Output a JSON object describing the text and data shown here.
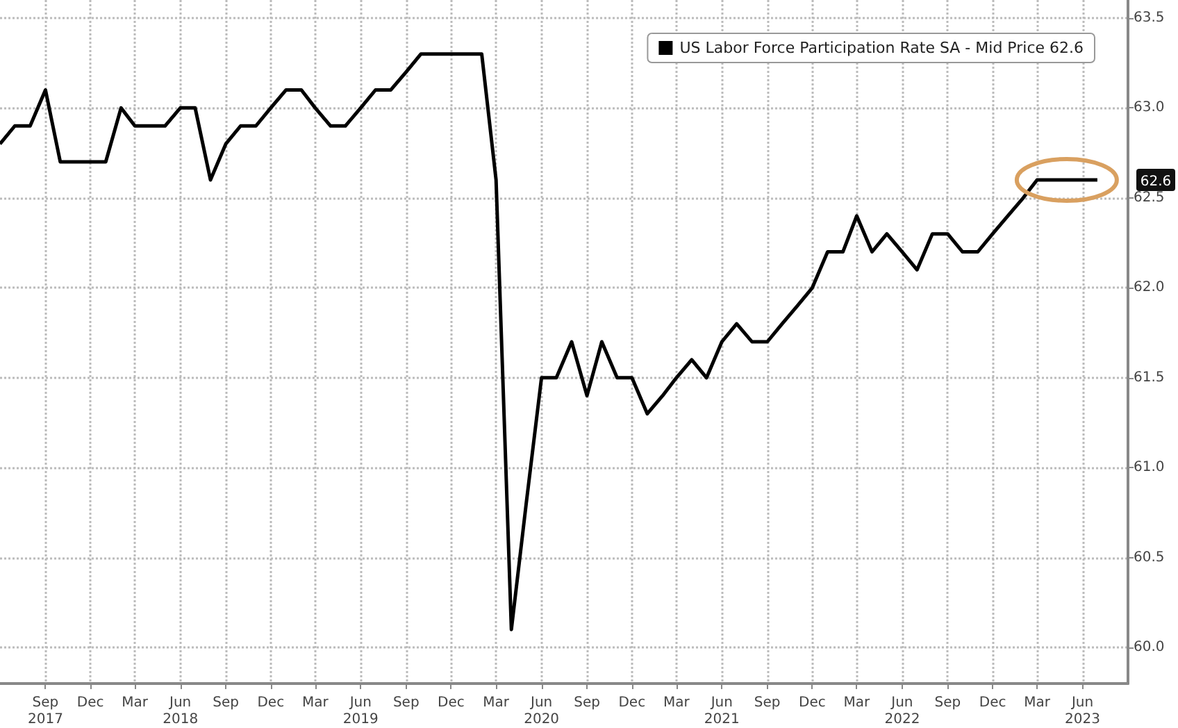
{
  "chart_data": {
    "type": "line",
    "x": [
      "2017-06",
      "2017-07",
      "2017-08",
      "2017-09",
      "2017-10",
      "2017-11",
      "2017-12",
      "2018-01",
      "2018-02",
      "2018-03",
      "2018-04",
      "2018-05",
      "2018-06",
      "2018-07",
      "2018-08",
      "2018-09",
      "2018-10",
      "2018-11",
      "2018-12",
      "2019-01",
      "2019-02",
      "2019-03",
      "2019-04",
      "2019-05",
      "2019-06",
      "2019-07",
      "2019-08",
      "2019-09",
      "2019-10",
      "2019-11",
      "2019-12",
      "2020-01",
      "2020-02",
      "2020-03",
      "2020-04",
      "2020-05",
      "2020-06",
      "2020-07",
      "2020-08",
      "2020-09",
      "2020-10",
      "2020-11",
      "2020-12",
      "2021-01",
      "2021-02",
      "2021-03",
      "2021-04",
      "2021-05",
      "2021-06",
      "2021-07",
      "2021-08",
      "2021-09",
      "2021-10",
      "2021-11",
      "2021-12",
      "2022-01",
      "2022-02",
      "2022-03",
      "2022-04",
      "2022-05",
      "2022-06",
      "2022-07",
      "2022-08",
      "2022-09",
      "2022-10",
      "2022-11",
      "2022-12",
      "2023-01",
      "2023-02",
      "2023-03",
      "2023-04",
      "2023-05",
      "2023-06",
      "2023-07"
    ],
    "series": [
      {
        "name": "US Labor Force Participation Rate SA - Mid Price 62.6",
        "color": "#000000",
        "values": [
          62.8,
          62.9,
          62.9,
          63.1,
          62.7,
          62.7,
          62.7,
          62.7,
          63.0,
          62.9,
          62.9,
          62.9,
          63.0,
          63.0,
          62.6,
          62.8,
          62.9,
          62.9,
          63.0,
          63.1,
          63.1,
          63.0,
          62.9,
          62.9,
          63.0,
          63.1,
          63.1,
          63.2,
          63.3,
          63.3,
          63.3,
          63.3,
          63.3,
          62.6,
          60.1,
          60.8,
          61.5,
          61.5,
          61.7,
          61.4,
          61.7,
          61.5,
          61.5,
          61.3,
          61.4,
          61.5,
          61.6,
          61.5,
          61.7,
          61.8,
          61.7,
          61.7,
          61.8,
          61.9,
          62.0,
          62.2,
          62.2,
          62.4,
          62.2,
          62.3,
          62.2,
          62.1,
          62.3,
          62.3,
          62.2,
          62.2,
          62.3,
          62.4,
          62.5,
          62.6,
          62.6,
          62.6,
          62.6,
          62.6
        ]
      }
    ],
    "xlim": [
      "2017-06",
      "2023-09"
    ],
    "xticks": [
      {
        "value": "2017-09",
        "label": "Sep\n2017"
      },
      {
        "value": "2017-12",
        "label": "Dec"
      },
      {
        "value": "2018-03",
        "label": "Mar"
      },
      {
        "value": "2018-06",
        "label": "Jun\n2018"
      },
      {
        "value": "2018-09",
        "label": "Sep"
      },
      {
        "value": "2018-12",
        "label": "Dec"
      },
      {
        "value": "2019-03",
        "label": "Mar"
      },
      {
        "value": "2019-06",
        "label": "Jun\n2019"
      },
      {
        "value": "2019-09",
        "label": "Sep"
      },
      {
        "value": "2019-12",
        "label": "Dec"
      },
      {
        "value": "2020-03",
        "label": "Mar"
      },
      {
        "value": "2020-06",
        "label": "Jun\n2020"
      },
      {
        "value": "2020-09",
        "label": "Sep"
      },
      {
        "value": "2020-12",
        "label": "Dec"
      },
      {
        "value": "2021-03",
        "label": "Mar"
      },
      {
        "value": "2021-06",
        "label": "Jun\n2021"
      },
      {
        "value": "2021-09",
        "label": "Sep"
      },
      {
        "value": "2021-12",
        "label": "Dec"
      },
      {
        "value": "2022-03",
        "label": "Mar"
      },
      {
        "value": "2022-06",
        "label": "Jun\n2022"
      },
      {
        "value": "2022-09",
        "label": "Sep"
      },
      {
        "value": "2022-12",
        "label": "Dec"
      },
      {
        "value": "2023-03",
        "label": "Mar"
      },
      {
        "value": "2023-06",
        "label": "Jun\n2023"
      }
    ],
    "ylim": [
      59.8,
      63.6
    ],
    "yticks": [
      {
        "value": 60,
        "label": "60.0"
      },
      {
        "value": 60.5,
        "label": "60.5"
      },
      {
        "value": 61,
        "label": "61.0"
      },
      {
        "value": 61.5,
        "label": "61.5"
      },
      {
        "value": 62,
        "label": "62.0"
      },
      {
        "value": 62.5,
        "label": "62.5"
      },
      {
        "value": 63,
        "label": "63.0"
      },
      {
        "value": 63.5,
        "label": "63.5"
      }
    ],
    "annotations": [
      "62.6"
    ],
    "grid": true,
    "legend": "top right",
    "marker": "none",
    "line_style": "solid"
  }
}
